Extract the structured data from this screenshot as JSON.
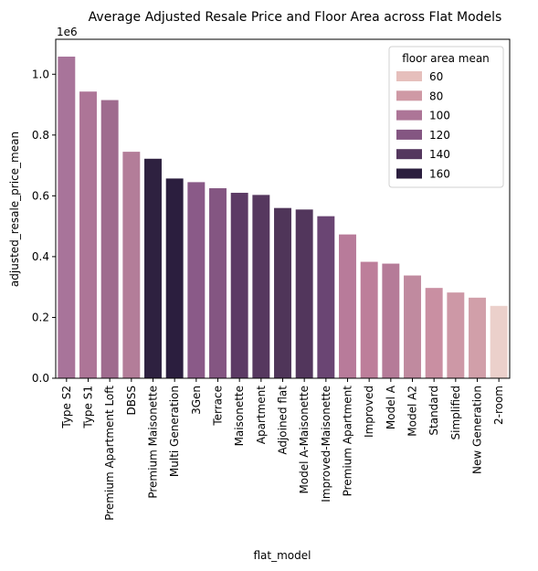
{
  "chart_data": {
    "type": "bar",
    "title": "Average Adjusted Resale Price and Floor Area across Flat Models",
    "xlabel": "flat_model",
    "ylabel": "adjusted_resale_price_mean",
    "y_offset_label": "1e6",
    "ylim": [
      0,
      1.115
    ],
    "y_ticks": [
      {
        "value": 0.0,
        "label": "0.0"
      },
      {
        "value": 0.2,
        "label": "0.2"
      },
      {
        "value": 0.4,
        "label": "0.4"
      },
      {
        "value": 0.6,
        "label": "0.6"
      },
      {
        "value": 0.8,
        "label": "0.8"
      },
      {
        "value": 1.0,
        "label": "1.0"
      }
    ],
    "grid": false,
    "legend_position": "top-right",
    "legend": {
      "title": "floor area mean",
      "entries": [
        {
          "label": "60",
          "color": "#e6bfbc"
        },
        {
          "label": "80",
          "color": "#cf99a5"
        },
        {
          "label": "100",
          "color": "#ad7597"
        },
        {
          "label": "120",
          "color": "#845682"
        },
        {
          "label": "140",
          "color": "#54375e"
        },
        {
          "label": "160",
          "color": "#2b1e3e"
        }
      ]
    },
    "categories": [
      "Type S2",
      "Type S1",
      "Premium Apartment Loft",
      "DBSS",
      "Premium Maisonette",
      "Multi Generation",
      "3Gen",
      "Terrace",
      "Maisonette",
      "Apartment",
      "Adjoined flat",
      "Model A-Maisonette",
      "Improved-Maisonette",
      "Premium Apartment",
      "Improved",
      "Model A",
      "Model A2",
      "Standard",
      "Simplified",
      "New Generation",
      "2-room"
    ],
    "values": [
      1.058,
      0.943,
      0.915,
      0.745,
      0.722,
      0.657,
      0.645,
      0.625,
      0.61,
      0.603,
      0.56,
      0.555,
      0.533,
      0.473,
      0.383,
      0.377,
      0.338,
      0.297,
      0.282,
      0.265,
      0.238
    ],
    "floor_area_mean": [
      106,
      104,
      108,
      100,
      158,
      160,
      115,
      122,
      142,
      145,
      138,
      140,
      125,
      98,
      93,
      94,
      88,
      82,
      80,
      78,
      55
    ],
    "colors": [
      "#a8749a",
      "#ad7597",
      "#9f6b8e",
      "#b37d99",
      "#2e2140",
      "#2b1e3e",
      "#8a5a88",
      "#845682",
      "#5c3a65",
      "#56385f",
      "#4f3559",
      "#52365c",
      "#6a4573",
      "#b87b9a",
      "#bd7e9a",
      "#b57b98",
      "#c08a9f",
      "#c98fa2",
      "#cd98a6",
      "#d19fa9",
      "#ebd0cb"
    ]
  }
}
